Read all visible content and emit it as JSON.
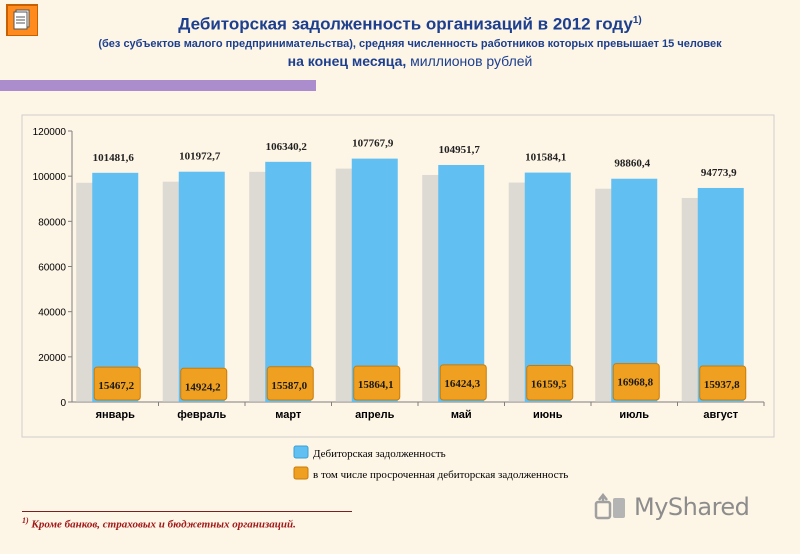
{
  "header": {
    "title": "Дебиторская задолженность организаций в 2012 году",
    "title_note": "1)",
    "subtitle": "(без субъектов малого предпринимательства), средняя численность работников которых превышает 15 человек",
    "period_label": "на конец месяца,",
    "unit_label": "миллионов рублей"
  },
  "chart_data": {
    "type": "bar",
    "categories": [
      "январь",
      "февраль",
      "март",
      "апрель",
      "май",
      "июнь",
      "июль",
      "август"
    ],
    "series": [
      {
        "name": "Дебиторская задолженность",
        "values": [
          101481.6,
          101972.7,
          106340.2,
          107767.9,
          104951.7,
          101584.1,
          98860.4,
          94773.9
        ],
        "labels": [
          "101481,6",
          "101972,7",
          "106340,2",
          "107767,9",
          "104951,7",
          "101584,1",
          "98860,4",
          "94773,9"
        ],
        "color": "#62bff2"
      },
      {
        "name": "в том числе просроченная дебиторская задолженность",
        "values": [
          15467.2,
          14924.2,
          15587.0,
          15864.1,
          16424.3,
          16159.5,
          16968.8,
          15937.8
        ],
        "labels": [
          "15467,2",
          "14924,2",
          "15587,0",
          "15864,1",
          "16424,3",
          "16159,5",
          "16968,8",
          "15937,8"
        ],
        "color": "#f0a020"
      }
    ],
    "yticks": [
      "0",
      "20000",
      "40000",
      "60000",
      "80000",
      "100000",
      "120000"
    ],
    "ylim": [
      0,
      120000
    ],
    "grid": false,
    "legend_position": "bottom-center"
  },
  "footnote": {
    "mark": "1)",
    "text": "Кроме банков, страховых и бюджетных организаций."
  },
  "watermark": {
    "text": "MyShared"
  },
  "icons": {
    "page": "document-icon",
    "watermark": "myshared-logo-icon"
  }
}
